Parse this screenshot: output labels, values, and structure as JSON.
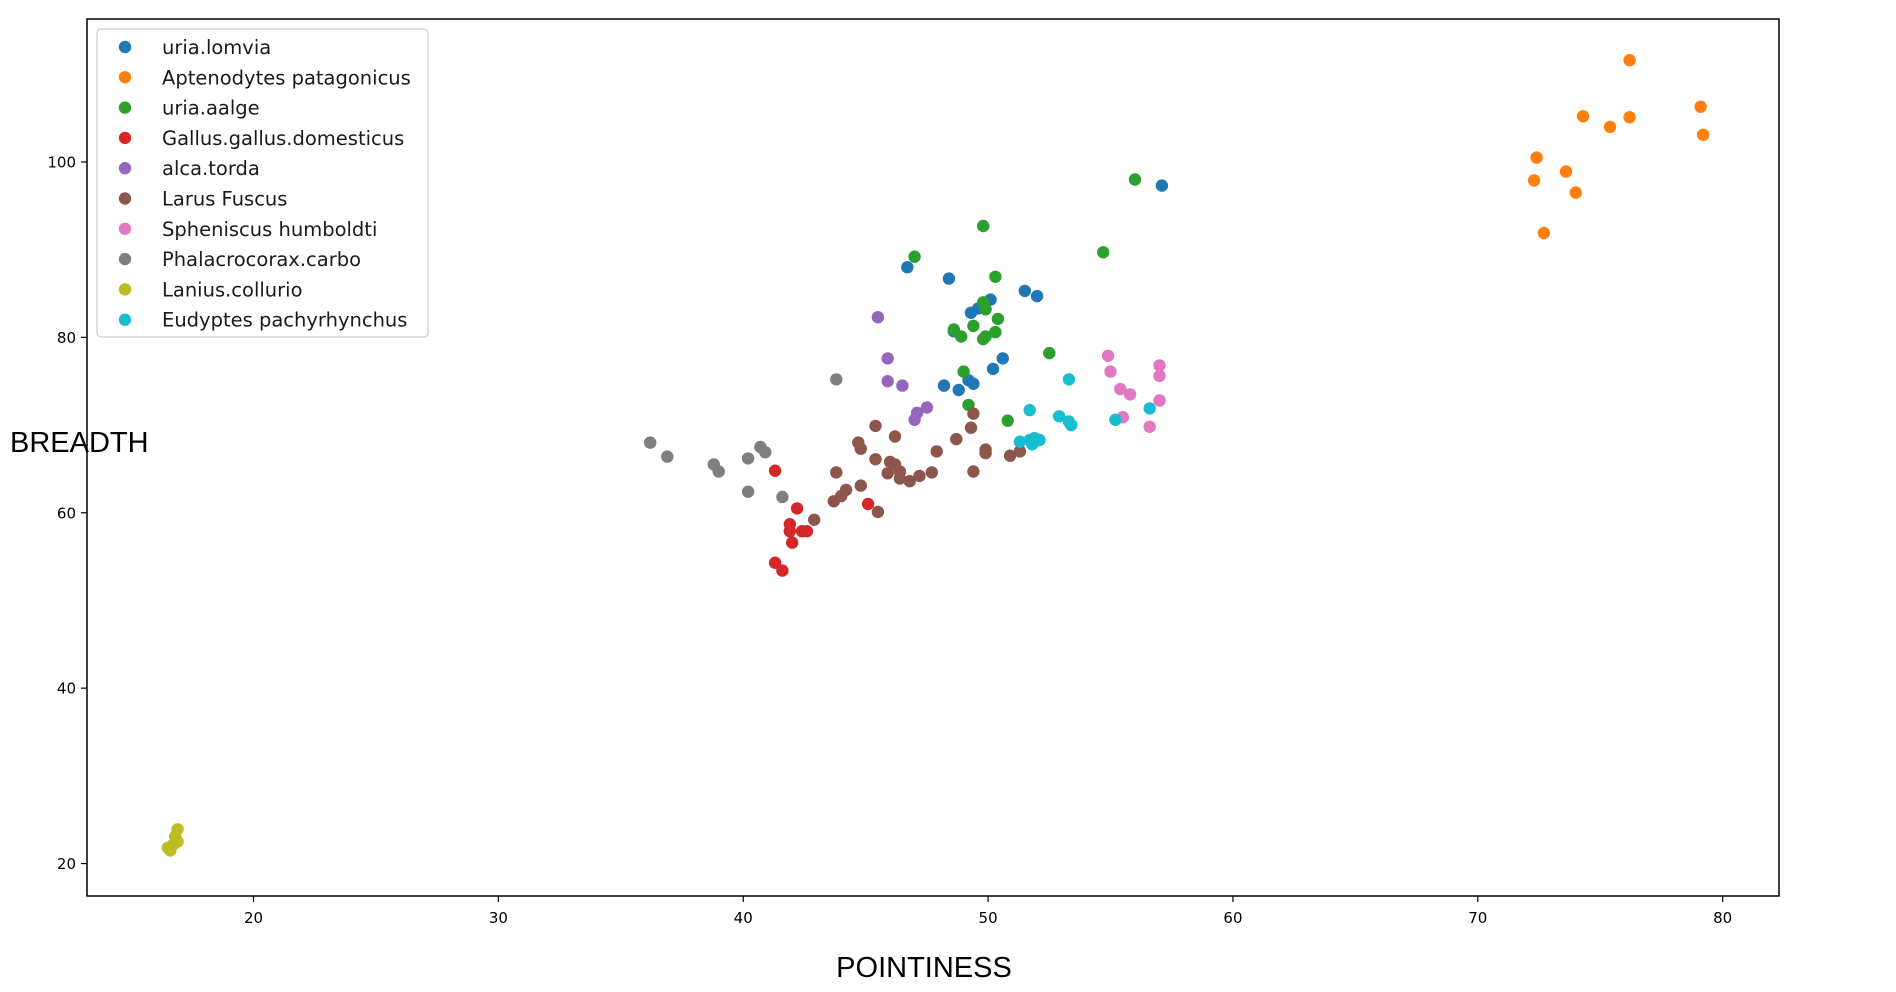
{
  "chart_data": {
    "type": "scatter",
    "title": "",
    "xlabel": "POINTINESS",
    "ylabel": "BREADTH",
    "xlim": [
      13.2,
      82.3
    ],
    "ylim": [
      16.3,
      116.3
    ],
    "xticks": [
      20,
      30,
      40,
      50,
      60,
      70,
      80
    ],
    "yticks": [
      20,
      40,
      60,
      80,
      100
    ],
    "grid": false,
    "legend_position": "top-left",
    "series": [
      {
        "name": "uria.lomvia",
        "color": "#1f77b4",
        "points": [
          [
            57.1,
            97.3
          ],
          [
            46.7,
            88.0
          ],
          [
            48.4,
            86.7
          ],
          [
            51.5,
            85.3
          ],
          [
            52.0,
            84.7
          ],
          [
            50.1,
            84.3
          ],
          [
            49.6,
            83.3
          ],
          [
            49.3,
            82.8
          ],
          [
            48.6,
            80.7
          ],
          [
            50.6,
            77.6
          ],
          [
            50.2,
            76.4
          ],
          [
            49.2,
            75.1
          ],
          [
            49.4,
            74.7
          ],
          [
            48.2,
            74.5
          ],
          [
            48.8,
            74.0
          ]
        ]
      },
      {
        "name": "Aptenodytes patagonicus",
        "color": "#ff7f0e",
        "points": [
          [
            76.2,
            111.6
          ],
          [
            79.1,
            106.3
          ],
          [
            74.3,
            105.2
          ],
          [
            76.2,
            105.1
          ],
          [
            75.4,
            104.0
          ],
          [
            79.2,
            103.1
          ],
          [
            72.4,
            100.5
          ],
          [
            73.6,
            98.9
          ],
          [
            72.3,
            97.9
          ],
          [
            74.0,
            96.5
          ],
          [
            72.7,
            91.9
          ]
        ]
      },
      {
        "name": "uria.aalge",
        "color": "#2ca02c",
        "points": [
          [
            56.0,
            98.0
          ],
          [
            49.8,
            92.7
          ],
          [
            54.7,
            89.7
          ],
          [
            47.0,
            89.2
          ],
          [
            50.3,
            86.9
          ],
          [
            49.8,
            84.0
          ],
          [
            49.9,
            83.2
          ],
          [
            50.4,
            82.1
          ],
          [
            49.4,
            81.3
          ],
          [
            48.6,
            80.9
          ],
          [
            50.3,
            80.6
          ],
          [
            49.9,
            80.1
          ],
          [
            48.9,
            80.1
          ],
          [
            49.8,
            79.8
          ],
          [
            52.5,
            78.2
          ],
          [
            49.0,
            76.1
          ],
          [
            49.2,
            72.3
          ],
          [
            50.8,
            70.5
          ]
        ]
      },
      {
        "name": "Gallus.gallus.domesticus",
        "color": "#d62728",
        "points": [
          [
            41.3,
            64.8
          ],
          [
            45.1,
            61.0
          ],
          [
            42.2,
            60.5
          ],
          [
            41.9,
            58.7
          ],
          [
            42.4,
            57.9
          ],
          [
            41.9,
            57.9
          ],
          [
            42.6,
            57.9
          ],
          [
            42.0,
            56.6
          ],
          [
            41.3,
            54.3
          ],
          [
            41.6,
            53.4
          ]
        ]
      },
      {
        "name": "alca.torda",
        "color": "#9467bd",
        "points": [
          [
            45.5,
            82.3
          ],
          [
            45.9,
            77.6
          ],
          [
            45.9,
            75.0
          ],
          [
            46.5,
            74.5
          ],
          [
            47.5,
            72.0
          ],
          [
            47.1,
            71.4
          ],
          [
            47.0,
            70.6
          ]
        ]
      },
      {
        "name": "Larus Fuscus",
        "color": "#8c564b",
        "points": [
          [
            49.4,
            71.3
          ],
          [
            45.4,
            69.9
          ],
          [
            49.3,
            69.7
          ],
          [
            46.2,
            68.7
          ],
          [
            48.7,
            68.4
          ],
          [
            44.7,
            68.0
          ],
          [
            44.8,
            67.3
          ],
          [
            49.9,
            67.2
          ],
          [
            47.9,
            67.0
          ],
          [
            51.3,
            67.0
          ],
          [
            49.9,
            66.8
          ],
          [
            50.9,
            66.5
          ],
          [
            45.4,
            66.1
          ],
          [
            46.0,
            65.8
          ],
          [
            46.2,
            65.5
          ],
          [
            43.8,
            64.6
          ],
          [
            45.9,
            64.5
          ],
          [
            46.4,
            64.7
          ],
          [
            47.7,
            64.6
          ],
          [
            49.4,
            64.7
          ],
          [
            46.4,
            63.9
          ],
          [
            47.2,
            64.2
          ],
          [
            46.8,
            63.6
          ],
          [
            44.8,
            63.1
          ],
          [
            44.2,
            62.6
          ],
          [
            44.0,
            61.9
          ],
          [
            43.7,
            61.3
          ],
          [
            45.5,
            60.1
          ],
          [
            42.9,
            59.2
          ]
        ]
      },
      {
        "name": "Spheniscus humboldti",
        "color": "#e377c2",
        "points": [
          [
            54.9,
            77.9
          ],
          [
            57.0,
            76.8
          ],
          [
            55.0,
            76.1
          ],
          [
            57.0,
            75.6
          ],
          [
            55.4,
            74.1
          ],
          [
            55.8,
            73.5
          ],
          [
            57.0,
            72.8
          ],
          [
            55.5,
            70.9
          ],
          [
            56.6,
            69.8
          ]
        ]
      },
      {
        "name": "Phalacrocorax.carbo",
        "color": "#7f7f7f",
        "points": [
          [
            43.8,
            75.2
          ],
          [
            36.2,
            68.0
          ],
          [
            40.7,
            67.5
          ],
          [
            40.9,
            66.9
          ],
          [
            36.9,
            66.4
          ],
          [
            40.2,
            66.2
          ],
          [
            38.8,
            65.5
          ],
          [
            39.0,
            64.7
          ],
          [
            40.2,
            62.4
          ],
          [
            41.6,
            61.8
          ]
        ]
      },
      {
        "name": "Lanius.collurio",
        "color": "#bcbd22",
        "points": [
          [
            16.9,
            23.9
          ],
          [
            16.8,
            23.1
          ],
          [
            16.9,
            22.5
          ],
          [
            16.7,
            22.1
          ],
          [
            16.5,
            21.8
          ],
          [
            16.6,
            21.5
          ]
        ]
      },
      {
        "name": "Eudyptes pachyrhynchus",
        "color": "#17becf",
        "points": [
          [
            53.3,
            75.2
          ],
          [
            51.7,
            71.7
          ],
          [
            56.6,
            71.9
          ],
          [
            52.9,
            71.0
          ],
          [
            55.2,
            70.6
          ],
          [
            53.3,
            70.4
          ],
          [
            53.4,
            70.0
          ],
          [
            51.9,
            68.5
          ],
          [
            51.7,
            68.3
          ],
          [
            51.3,
            68.1
          ],
          [
            52.1,
            68.3
          ],
          [
            51.8,
            67.8
          ]
        ]
      }
    ]
  }
}
